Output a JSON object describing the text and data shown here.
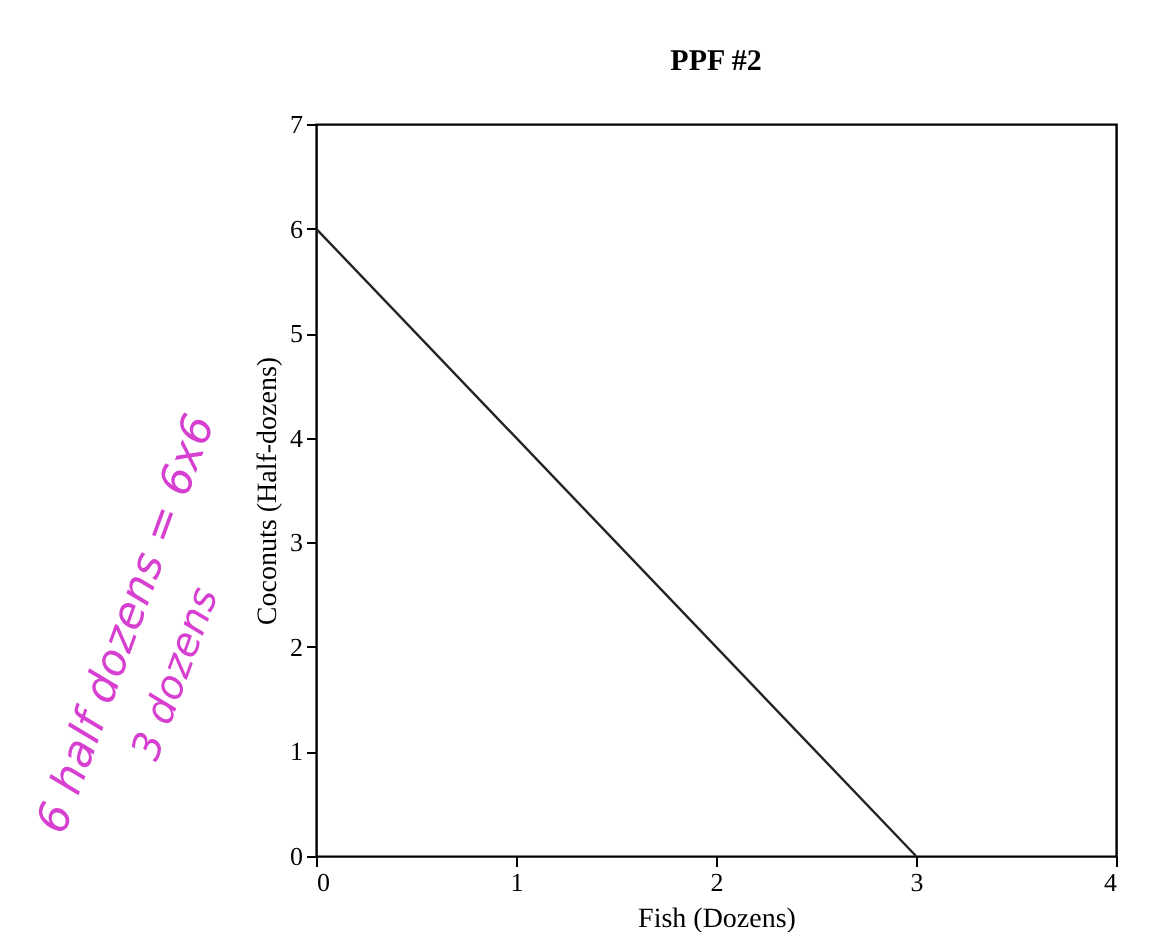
{
  "chart_data": {
    "type": "line",
    "title": "PPF #2",
    "xlabel": "Fish (Dozens)",
    "ylabel": "Coconuts (Half-dozens)",
    "x": [
      0,
      3
    ],
    "series": [
      {
        "color": "#222222",
        "values": [
          6,
          0
        ]
      }
    ],
    "xlim": [
      0,
      4
    ],
    "xticks": [
      0,
      1,
      2,
      3,
      4
    ],
    "ylim": [
      0,
      7
    ],
    "yticks": [
      0,
      1,
      2,
      3,
      4,
      5,
      6,
      7
    ],
    "grid": false,
    "legend": false,
    "marker": "none",
    "line_style": "solid",
    "annotations": [
      "6 half dozens = 6x6",
      "3 dozens"
    ]
  }
}
